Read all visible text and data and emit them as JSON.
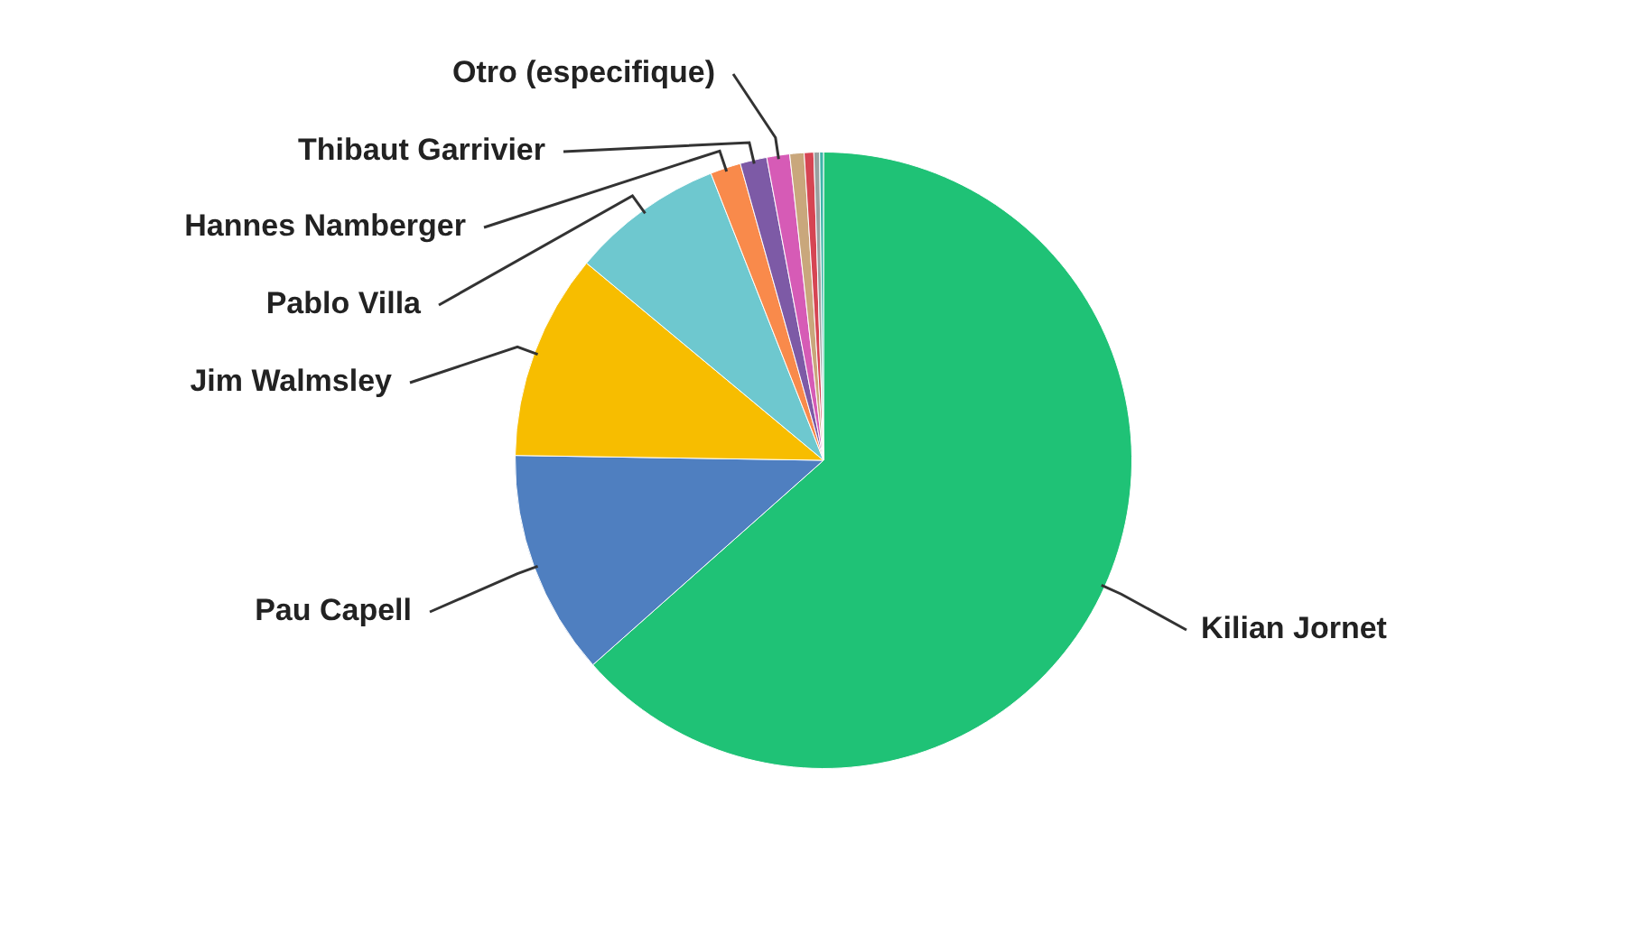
{
  "chart_data": {
    "type": "pie",
    "categories": [
      "Kilian Jornet",
      "Pau Capell",
      "Jim Walmsley",
      "Pablo Villa",
      "Hannes Namberger",
      "Thibaut Garrivier",
      "Otro (especifique)",
      null,
      null,
      null,
      null
    ],
    "values": [
      63.45,
      11.8,
      10.8,
      8.0,
      1.6,
      1.4,
      1.2,
      0.75,
      0.5,
      0.3,
      0.2
    ],
    "colors": [
      "#1fc276",
      "#4f7fc0",
      "#f7bd00",
      "#6ec8cf",
      "#f98a4b",
      "#7d5aa6",
      "#d65bb6",
      "#c9a77c",
      "#d64553",
      "#9aa0a0",
      "#3cb6a8"
    ],
    "legend": false
  }
}
